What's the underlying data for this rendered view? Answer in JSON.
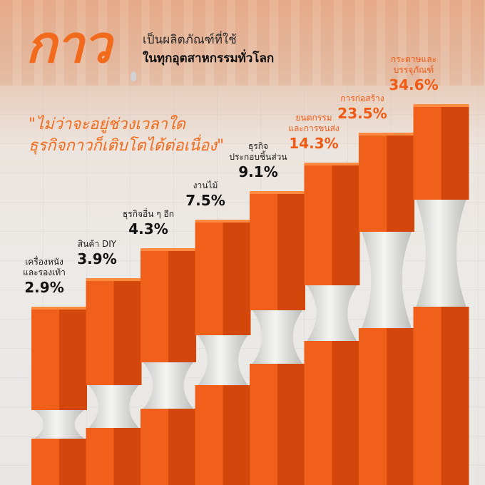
{
  "heading": {
    "title": "กาว",
    "line1": "เป็นผลิตภัณฑ์ที่ใช้",
    "line2": "ในทุกอุตสาหกรรมทั่วโลก"
  },
  "quote": {
    "line1": "\"ไม่ว่าจะอยู่ช่วงเวลาใด",
    "line2": "ธุรกิจกาวก็เติบโตได้ต่อเนื่อง\""
  },
  "colors": {
    "accent": "#f26a1b",
    "bar_front": "#f0601a",
    "bar_side": "#d4470c",
    "bar_top": "#ff8a40",
    "glue": "#f4f4f2"
  },
  "chart_data": {
    "type": "bar",
    "unit": "%",
    "categories": [
      [
        "เครื่องหนัง",
        "และรองเท้า"
      ],
      [
        "สินค้า DIY"
      ],
      [
        "ธุรกิจอื่น ๆ อีก"
      ],
      [
        "งานไม้"
      ],
      [
        "ธุรกิจ",
        "ประกอบชิ้นส่วน"
      ],
      [
        "ยนตกรรม",
        "และการขนส่ง"
      ],
      [
        "การก่อสร้าง"
      ],
      [
        "กระดาษและ",
        "บรรจุภัณฑ์"
      ]
    ],
    "values": [
      2.9,
      3.9,
      4.3,
      7.5,
      9.1,
      14.3,
      23.5,
      34.6
    ],
    "value_labels": [
      "2.9%",
      "3.9%",
      "4.3%",
      "7.5%",
      "9.1%",
      "14.3%",
      "23.5%",
      "34.6%"
    ],
    "highlight_from_index": 5
  }
}
